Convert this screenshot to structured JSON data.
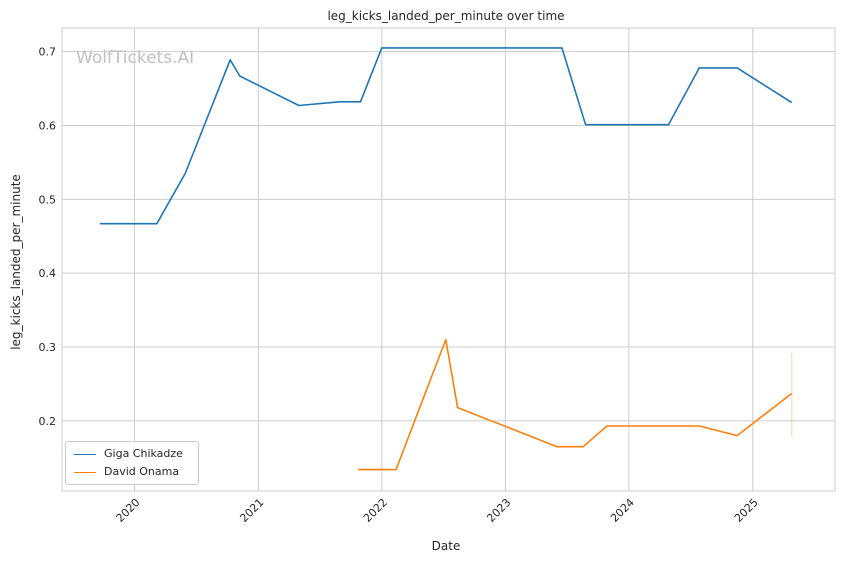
{
  "chart_data": {
    "type": "line",
    "title": "leg_kicks_landed_per_minute over time",
    "xlabel": "Date",
    "ylabel": "leg_kicks_landed_per_minute",
    "watermark": "WolfTickets.AI",
    "x_type": "date",
    "xlim": [
      "2019-06-01",
      "2025-09-01"
    ],
    "ylim": [
      0.105,
      0.732
    ],
    "x_ticks": [
      "2020-01-01",
      "2021-01-01",
      "2022-01-01",
      "2023-01-01",
      "2024-01-01",
      "2025-01-01"
    ],
    "x_tick_labels": [
      "2020",
      "2021",
      "2022",
      "2023",
      "2024",
      "2025"
    ],
    "y_ticks": [
      0.2,
      0.3,
      0.4,
      0.5,
      0.6,
      0.7
    ],
    "y_tick_labels": [
      "0.2",
      "0.3",
      "0.4",
      "0.5",
      "0.6",
      "0.7"
    ],
    "grid": true,
    "legend_position": "lower-left",
    "series": [
      {
        "name": "Giga Chikadze",
        "color": "#1f77b4",
        "points": [
          {
            "x": "2019-09-21",
            "y": 0.467
          },
          {
            "x": "2020-03-07",
            "y": 0.467
          },
          {
            "x": "2020-05-30",
            "y": 0.535
          },
          {
            "x": "2020-10-10",
            "y": 0.689
          },
          {
            "x": "2020-11-07",
            "y": 0.667
          },
          {
            "x": "2021-05-01",
            "y": 0.627
          },
          {
            "x": "2021-08-28",
            "y": 0.632
          },
          {
            "x": "2021-10-30",
            "y": 0.632
          },
          {
            "x": "2022-01-01",
            "y": 0.705
          },
          {
            "x": "2023-06-17",
            "y": 0.705
          },
          {
            "x": "2023-08-26",
            "y": 0.601
          },
          {
            "x": "2024-04-27",
            "y": 0.601
          },
          {
            "x": "2024-07-27",
            "y": 0.678
          },
          {
            "x": "2024-11-16",
            "y": 0.678
          },
          {
            "x": "2025-04-26",
            "y": 0.631
          }
        ]
      },
      {
        "name": "David Onama",
        "color": "#ff7f0e",
        "points": [
          {
            "x": "2021-10-23",
            "y": 0.134
          },
          {
            "x": "2022-02-12",
            "y": 0.134
          },
          {
            "x": "2022-07-09",
            "y": 0.31
          },
          {
            "x": "2022-08-13",
            "y": 0.218
          },
          {
            "x": "2023-06-03",
            "y": 0.165
          },
          {
            "x": "2023-08-19",
            "y": 0.165
          },
          {
            "x": "2023-10-28",
            "y": 0.193
          },
          {
            "x": "2024-07-27",
            "y": 0.193
          },
          {
            "x": "2024-11-16",
            "y": 0.18
          },
          {
            "x": "2025-04-26",
            "y": 0.237
          }
        ],
        "error_band_last": {
          "x": "2025-04-26",
          "low": 0.178,
          "high": 0.292
        }
      }
    ]
  }
}
